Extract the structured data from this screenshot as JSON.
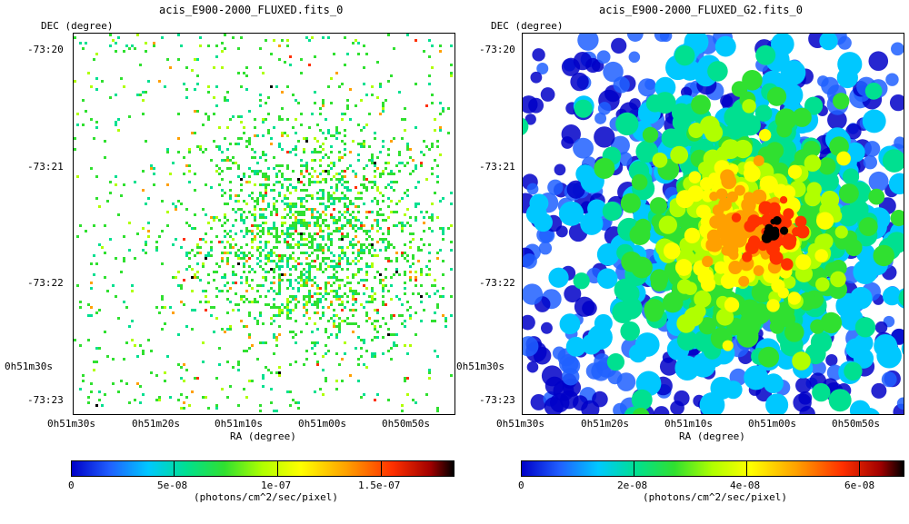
{
  "panels": [
    {
      "title": "acis_E900-2000_FLUXED.fits_0",
      "dec_axis_label": "DEC (degree)",
      "ra_axis_label": "RA (degree)",
      "dec_ticks": [
        "-73:20",
        "-73:21",
        "-73:22",
        "0h51m30s",
        "-73:23"
      ],
      "ra_ticks": [
        "0h51m30s",
        "0h51m20s",
        "0h51m10s",
        "0h51m00s",
        "0h50m50s"
      ],
      "colorbar_ticks": [
        "0",
        "5e-08",
        "1e-07",
        "1.5e-07"
      ],
      "colorbar_label": "(photons/cm^2/sec/pixel)",
      "image_style": "sparse-pixels"
    },
    {
      "title": "acis_E900-2000_FLUXED_G2.fits_0",
      "dec_axis_label": "DEC (degree)",
      "ra_axis_label": "RA (degree)",
      "dec_ticks": [
        "-73:20",
        "-73:21",
        "-73:22",
        "0h51m30s",
        "-73:23"
      ],
      "ra_ticks": [
        "0h51m30s",
        "0h51m20s",
        "0h51m10s",
        "0h51m00s",
        "0h50m50s"
      ],
      "colorbar_ticks": [
        "0",
        "2e-08",
        "4e-08",
        "6e-08"
      ],
      "colorbar_label": "(photons/cm^2/sec/pixel)",
      "image_style": "smoothed"
    }
  ],
  "colormap": [
    "#0000c8",
    "#2060ff",
    "#00c8ff",
    "#00e090",
    "#30e030",
    "#b0ff00",
    "#ffff00",
    "#ffa000",
    "#ff3000",
    "#a00000",
    "#000000"
  ]
}
